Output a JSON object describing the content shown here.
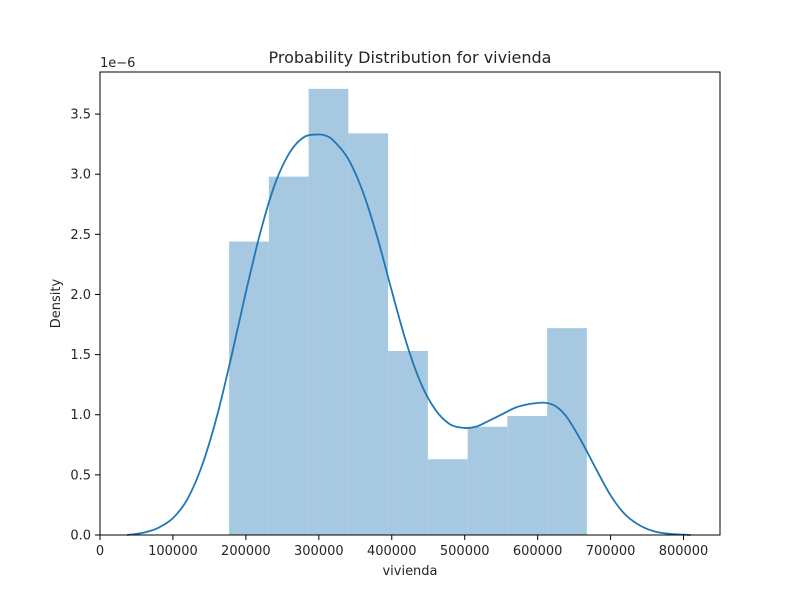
{
  "chart_data": {
    "type": "histogram",
    "title": "Probability Distribution for vivienda",
    "xlabel": "vivienda",
    "ylabel": "Density",
    "y_scale_label": "1e−6",
    "xlim": [
      0,
      850000
    ],
    "ylim": [
      0,
      3.85
    ],
    "xticks": [
      0,
      100000,
      200000,
      300000,
      400000,
      500000,
      600000,
      700000,
      800000
    ],
    "xtick_labels": [
      "0",
      "100000",
      "200000",
      "300000",
      "400000",
      "500000",
      "600000",
      "700000",
      "800000"
    ],
    "yticks": [
      0.0,
      0.5,
      1.0,
      1.5,
      2.0,
      2.5,
      3.0,
      3.5
    ],
    "ytick_labels": [
      "0.0",
      "0.5",
      "1.0",
      "1.5",
      "2.0",
      "2.5",
      "3.0",
      "3.5"
    ],
    "bins": [
      {
        "x0": 177000,
        "x1": 231500,
        "density": 2.44
      },
      {
        "x0": 231500,
        "x1": 286000,
        "density": 2.98
      },
      {
        "x0": 286000,
        "x1": 340500,
        "density": 3.71
      },
      {
        "x0": 340500,
        "x1": 395000,
        "density": 3.34
      },
      {
        "x0": 395000,
        "x1": 449500,
        "density": 1.53
      },
      {
        "x0": 449500,
        "x1": 504000,
        "density": 0.63
      },
      {
        "x0": 504000,
        "x1": 558500,
        "density": 0.9
      },
      {
        "x0": 558500,
        "x1": 613000,
        "density": 0.99
      },
      {
        "x0": 613000,
        "x1": 667500,
        "density": 1.72
      }
    ],
    "kde": {
      "x": [
        37000,
        60000,
        80000,
        100000,
        120000,
        140000,
        160000,
        180000,
        200000,
        220000,
        240000,
        260000,
        280000,
        300000,
        310000,
        320000,
        340000,
        360000,
        380000,
        400000,
        420000,
        440000,
        460000,
        480000,
        500000,
        515000,
        530000,
        550000,
        570000,
        590000,
        610000,
        625000,
        640000,
        660000,
        680000,
        700000,
        720000,
        740000,
        760000,
        780000,
        800000,
        810000
      ],
      "y": [
        0.0,
        0.02,
        0.06,
        0.14,
        0.3,
        0.58,
        0.98,
        1.48,
        2.02,
        2.52,
        2.92,
        3.18,
        3.31,
        3.33,
        3.32,
        3.28,
        3.13,
        2.86,
        2.48,
        2.03,
        1.6,
        1.26,
        1.04,
        0.92,
        0.89,
        0.9,
        0.94,
        1.0,
        1.06,
        1.09,
        1.1,
        1.07,
        0.98,
        0.78,
        0.55,
        0.33,
        0.17,
        0.08,
        0.03,
        0.01,
        0.003,
        0.0
      ]
    },
    "colors": {
      "bar_fill": "#a6c8e0",
      "line": "#1f77b4",
      "axes": "#000000",
      "text": "#262626"
    },
    "grid": false,
    "legend": false
  }
}
